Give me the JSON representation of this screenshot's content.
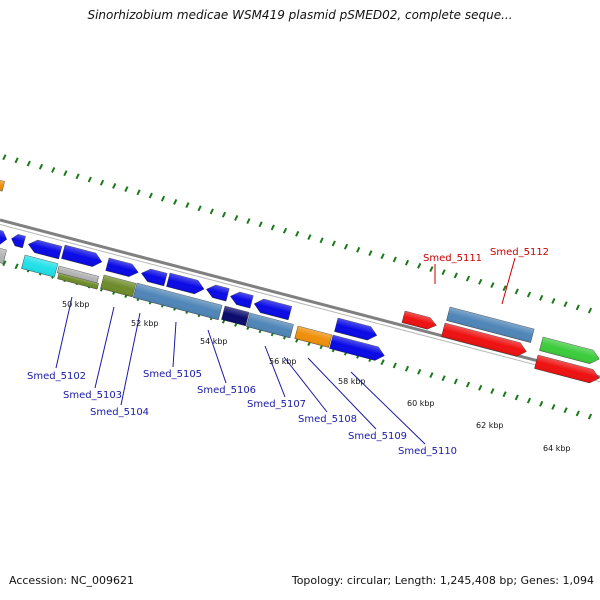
{
  "title": "Sinorhizobium medicae WSM419 plasmid pSMED02, complete seque...",
  "footer": {
    "accession": "Accession: NC_009621",
    "summary": "Topology: circular; Length: 1,245,408 bp; Genes: 1,094"
  },
  "scale_labels": [
    "50 kbp",
    "52 kbp",
    "54 kbp",
    "56 kbp",
    "58 kbp",
    "60 kbp",
    "62 kbp",
    "64 kbp"
  ],
  "gene_labels": [
    {
      "text": "Smed_5102",
      "color": "#1a1aa8"
    },
    {
      "text": "Smed_5103",
      "color": "#1a1aa8"
    },
    {
      "text": "Smed_5104",
      "color": "#1a1aa8"
    },
    {
      "text": "Smed_5105",
      "color": "#1a1aa8"
    },
    {
      "text": "Smed_5106",
      "color": "#1a1aa8"
    },
    {
      "text": "Smed_5107",
      "color": "#1a1aa8"
    },
    {
      "text": "Smed_5108",
      "color": "#1a1aa8"
    },
    {
      "text": "Smed_5109",
      "color": "#1a1aa8"
    },
    {
      "text": "Smed_5110",
      "color": "#1a1aa8"
    },
    {
      "text": "Smed_5111",
      "color": "#cc0000"
    },
    {
      "text": "Smed_5112",
      "color": "#cc0000"
    }
  ],
  "colors": {
    "backbone": "#808080",
    "tick": "#1a7a1a",
    "blue": "#0a0ae6",
    "steelblue": "#4f86b8",
    "navy": "#0a0a6e",
    "olive": "#6e8c2a",
    "cyan": "#22e0e8",
    "orange": "#f0900a",
    "red": "#ee1111",
    "green": "#3ccc3c",
    "gray": "#b4b4b4"
  }
}
